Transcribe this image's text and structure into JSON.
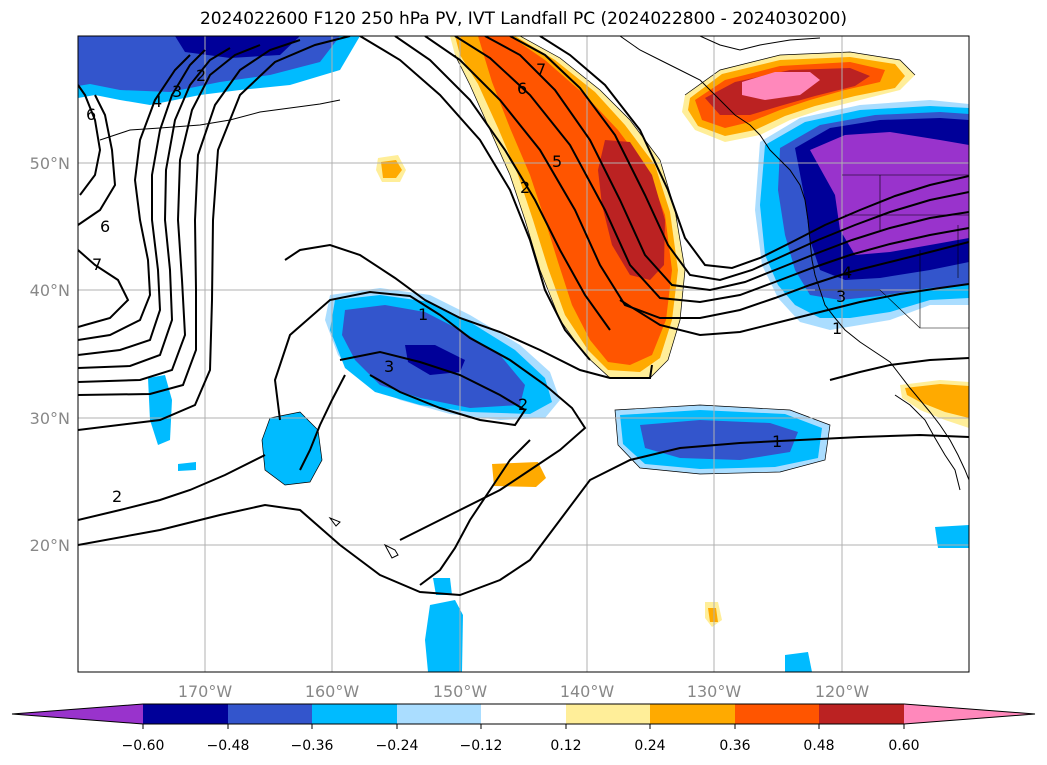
{
  "title": "2024022600 F120 250 hPa PV, IVT Landfall PC (2024022800 - 2024030200)",
  "map": {
    "projection": "PlateCarree",
    "lon_range": [
      -180,
      -110
    ],
    "lat_range": [
      10,
      60
    ],
    "gridlines": true,
    "coastlines": true,
    "state_borders": true,
    "lon_ticks": [
      "170°W",
      "160°W",
      "150°W",
      "140°W",
      "130°W",
      "120°W"
    ],
    "lat_ticks": [
      "20°N",
      "30°N",
      "40°N",
      "50°N"
    ]
  },
  "contours": {
    "field": "250 hPa PV",
    "labels_visible": [
      "1",
      "2",
      "3",
      "4",
      "5",
      "6",
      "7"
    ],
    "color": "#000000"
  },
  "colorbar": {
    "orientation": "horizontal",
    "extend": "both",
    "tick_labels": [
      "−0.60",
      "−0.48",
      "−0.36",
      "−0.24",
      "−0.12",
      "0.12",
      "0.24",
      "0.36",
      "0.48",
      "0.60"
    ],
    "colors": [
      "#9933cc",
      "#000099",
      "#3355cc",
      "#00bbff",
      "#aaddff",
      "#ffffff",
      "#ffee99",
      "#ffaa00",
      "#ff5500",
      "#bb2222",
      "#ff88bb"
    ]
  }
}
